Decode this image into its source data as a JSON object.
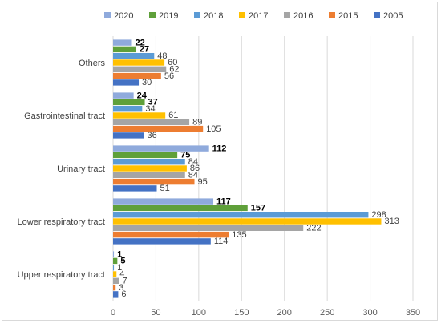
{
  "chart_data": {
    "type": "bar",
    "orientation": "horizontal",
    "categories": [
      "Upper respiratory tract",
      "Lower respiratory tract",
      "Urinary tract",
      "Gastrointestinal tract",
      "Others"
    ],
    "series": [
      {
        "name": "2020",
        "color": "#8faadc",
        "values": [
          1,
          117,
          112,
          24,
          22
        ],
        "label_bold": true
      },
      {
        "name": "2019",
        "color": "#5fa03a",
        "values": [
          5,
          157,
          75,
          37,
          27
        ],
        "label_bold": true
      },
      {
        "name": "2018",
        "color": "#5b9bd5",
        "values": [
          1,
          298,
          84,
          34,
          48
        ],
        "label_bold": false
      },
      {
        "name": "2017",
        "color": "#ffc000",
        "values": [
          4,
          313,
          86,
          61,
          60
        ],
        "label_bold": false
      },
      {
        "name": "2016",
        "color": "#a5a5a5",
        "values": [
          7,
          222,
          84,
          89,
          62
        ],
        "label_bold": false
      },
      {
        "name": "2015",
        "color": "#ed7d31",
        "values": [
          3,
          135,
          95,
          105,
          56
        ],
        "label_bold": false
      },
      {
        "name": "2005",
        "color": "#4472c4",
        "values": [
          6,
          114,
          51,
          36,
          30
        ],
        "label_bold": false
      }
    ],
    "title": "",
    "xlabel": "",
    "ylabel": "",
    "xlim": [
      0,
      350
    ],
    "xticks": [
      0,
      50,
      100,
      150,
      200,
      250,
      300,
      350
    ],
    "grid": true,
    "legend_position": "top"
  }
}
